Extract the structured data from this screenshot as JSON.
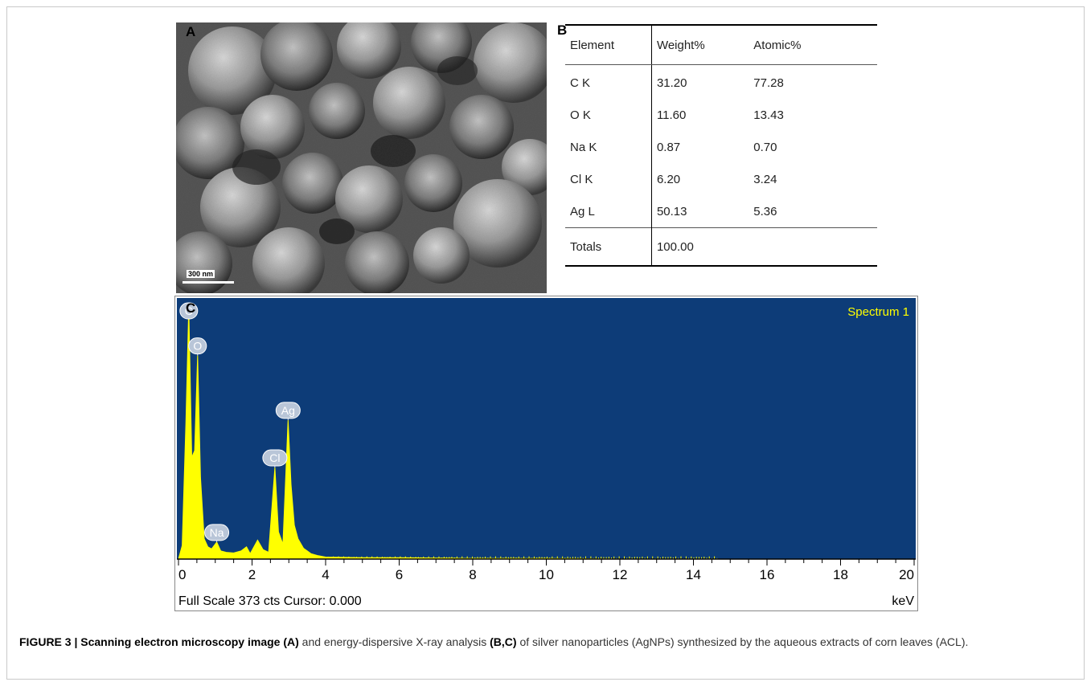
{
  "panels": {
    "a_letter": "A",
    "b_letter": "B",
    "c_letter": "C"
  },
  "sem": {
    "scale_bar_label": "300 nm"
  },
  "table": {
    "headers": [
      "Element",
      "Weight%",
      "Atomic%"
    ],
    "rows": [
      [
        "C K",
        "31.20",
        "77.28"
      ],
      [
        "O K",
        "11.60",
        "13.43"
      ],
      [
        "Na K",
        "0.87",
        "0.70"
      ],
      [
        "Cl K",
        "6.20",
        "3.24"
      ],
      [
        "Ag L",
        "50.13",
        "5.36"
      ]
    ],
    "totals": [
      "Totals",
      "100.00",
      ""
    ]
  },
  "spectrum": {
    "title": "Spectrum 1",
    "footer_left": "Full Scale 373 cts Cursor: 0.000",
    "footer_unit": "keV",
    "background_color": "#0d3c78",
    "trace_color": "#ffff00"
  },
  "chart_data": {
    "type": "area",
    "title": "Spectrum 1",
    "xlabel": "keV",
    "ylabel": "",
    "xlim": [
      0,
      20
    ],
    "ylim": [
      0,
      373
    ],
    "x_ticks": [
      "0",
      "2",
      "4",
      "6",
      "8",
      "10",
      "12",
      "14",
      "16",
      "18",
      "20"
    ],
    "peaks": [
      {
        "label": "C",
        "x": 0.28,
        "y": 373
      },
      {
        "label": "O",
        "x": 0.52,
        "y": 300
      },
      {
        "label": "Na",
        "x": 1.04,
        "y": 25
      },
      {
        "label": "Cl",
        "x": 2.62,
        "y": 135
      },
      {
        "label": "Ag",
        "x": 2.98,
        "y": 205
      }
    ],
    "series": [
      {
        "values": [
          [
            0.0,
            0
          ],
          [
            0.1,
            20
          ],
          [
            0.2,
            200
          ],
          [
            0.28,
            373
          ],
          [
            0.36,
            150
          ],
          [
            0.44,
            160
          ],
          [
            0.52,
            300
          ],
          [
            0.6,
            120
          ],
          [
            0.7,
            30
          ],
          [
            0.8,
            18
          ],
          [
            0.9,
            15
          ],
          [
            1.04,
            25
          ],
          [
            1.15,
            12
          ],
          [
            1.3,
            10
          ],
          [
            1.5,
            9
          ],
          [
            1.7,
            12
          ],
          [
            1.85,
            18
          ],
          [
            1.95,
            8
          ],
          [
            2.15,
            28
          ],
          [
            2.3,
            14
          ],
          [
            2.45,
            10
          ],
          [
            2.62,
            135
          ],
          [
            2.72,
            40
          ],
          [
            2.84,
            22
          ],
          [
            2.98,
            205
          ],
          [
            3.06,
            110
          ],
          [
            3.15,
            50
          ],
          [
            3.25,
            30
          ],
          [
            3.4,
            16
          ],
          [
            3.6,
            8
          ],
          [
            3.8,
            5
          ],
          [
            4.0,
            3
          ],
          [
            5.0,
            2
          ],
          [
            6.0,
            2
          ],
          [
            8.0,
            1
          ],
          [
            10.0,
            1
          ],
          [
            12.0,
            0
          ],
          [
            14.0,
            0
          ],
          [
            16.0,
            0
          ],
          [
            18.0,
            0
          ],
          [
            20.0,
            0
          ]
        ]
      }
    ],
    "grid": false
  },
  "caption": {
    "label": "FIGURE 3 | Scanning electron microscopy image (A)",
    "text1": " and energy-dispersive X-ray analysis ",
    "bold2": "(B,C)",
    "text2": " of silver nanoparticles (AgNPs) synthesized by the aqueous extracts of corn leaves (ACL)."
  }
}
